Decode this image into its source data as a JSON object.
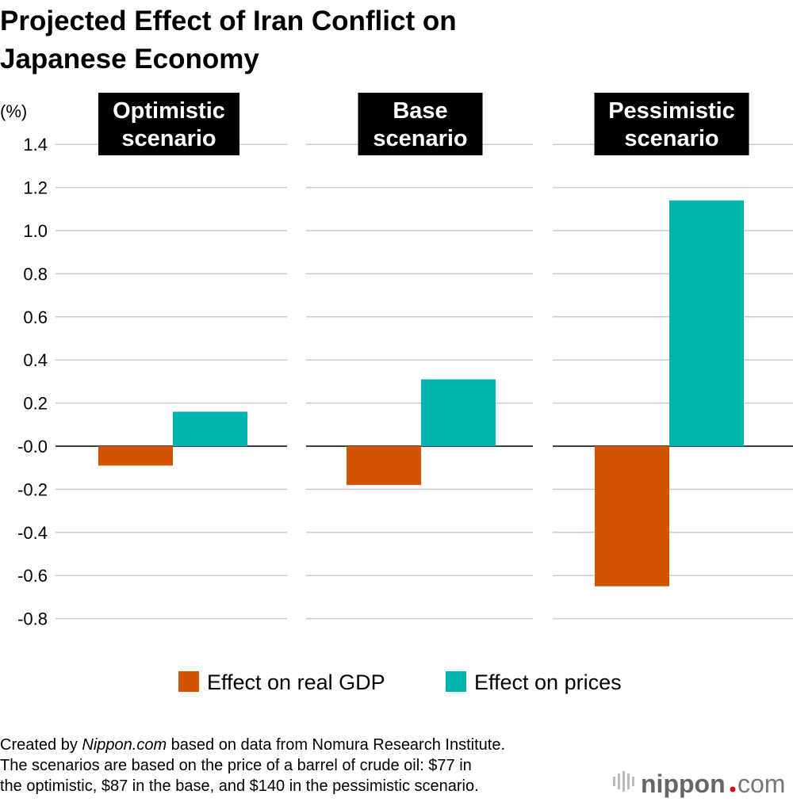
{
  "chart_data": {
    "type": "bar",
    "title": "Projected Effect of Iran Conflict on Japanese Economy",
    "ylabel": "(%)",
    "ylim": [
      -0.8,
      1.4
    ],
    "yticks": [
      1.4,
      1.2,
      1.0,
      0.8,
      0.6,
      0.4,
      0.2,
      0.0,
      -0.2,
      -0.4,
      -0.6,
      -0.8
    ],
    "ytick_labels": [
      "1.4",
      "1.2",
      "1.0",
      "0.8",
      "0.6",
      "0.4",
      "0.2",
      "-0.0",
      "-0.2",
      "-0.4",
      "-0.6",
      "-0.8"
    ],
    "grid": true,
    "categories": [
      [
        "Optimistic",
        "scenario"
      ],
      [
        "Base",
        "scenario"
      ],
      [
        "Pessimistic",
        "scenario"
      ]
    ],
    "series": [
      {
        "name": "Effect on real GDP",
        "color": "#d35400",
        "values": [
          -0.09,
          -0.18,
          -0.65
        ]
      },
      {
        "name": "Effect on prices",
        "color": "#00b5ad",
        "values": [
          0.16,
          0.31,
          1.14
        ]
      }
    ],
    "legend_position": "bottom"
  },
  "footer": {
    "line1_prefix": "Created by ",
    "line1_site": "Nippon.com",
    "line1_suffix": " based on data from Nomura Research Institute.",
    "line2": "The scenarios are based on the price of a barrel of crude oil: $77 in",
    "line3": "the optimistic, $87 in the base, and $140 in the pessimistic scenario."
  },
  "logo": {
    "text": "nippon.com",
    "dot_color": "#e60012"
  }
}
